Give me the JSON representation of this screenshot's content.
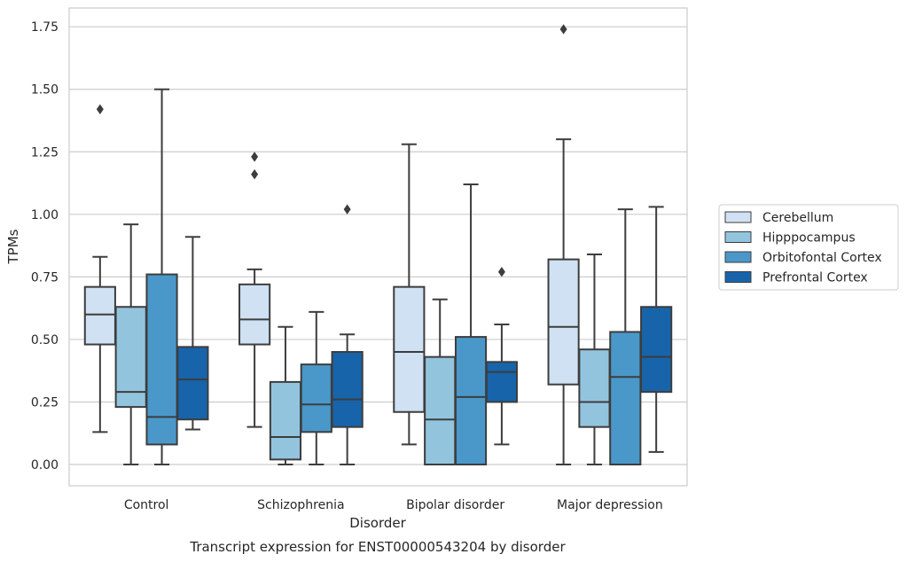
{
  "chart_data": {
    "type": "box",
    "title": "Transcript expression for ENST00000543204 by disorder",
    "xlabel": "Disorder",
    "ylabel": "TPMs",
    "ylim": [
      -0.085,
      1.825
    ],
    "yticks": [
      "0.00",
      "0.25",
      "0.50",
      "0.75",
      "1.00",
      "1.25",
      "1.50",
      "1.75"
    ],
    "grid": "horizontal",
    "legend_position": "right",
    "categories": [
      "Control",
      "Schizophrenia",
      "Bipolar disorder",
      "Major depression"
    ],
    "series": [
      {
        "name": "Cerebellum",
        "color": "#cfe1f2",
        "boxes": [
          {
            "whisker_low": 0.13,
            "q1": 0.48,
            "median": 0.6,
            "q3": 0.71,
            "whisker_high": 0.83,
            "outliers": [
              1.42
            ]
          },
          {
            "whisker_low": 0.15,
            "q1": 0.48,
            "median": 0.58,
            "q3": 0.72,
            "whisker_high": 0.78,
            "outliers": [
              1.16,
              1.23
            ]
          },
          {
            "whisker_low": 0.08,
            "q1": 0.21,
            "median": 0.45,
            "q3": 0.71,
            "whisker_high": 1.28,
            "outliers": []
          },
          {
            "whisker_low": 0.0,
            "q1": 0.32,
            "median": 0.55,
            "q3": 0.82,
            "whisker_high": 1.3,
            "outliers": [
              1.74
            ]
          }
        ]
      },
      {
        "name": "Hipppocampus",
        "color": "#93c4de",
        "boxes": [
          {
            "whisker_low": 0.0,
            "q1": 0.23,
            "median": 0.29,
            "q3": 0.63,
            "whisker_high": 0.96,
            "outliers": []
          },
          {
            "whisker_low": 0.0,
            "q1": 0.02,
            "median": 0.11,
            "q3": 0.33,
            "whisker_high": 0.55,
            "outliers": []
          },
          {
            "whisker_low": 0.0,
            "q1": 0.0,
            "median": 0.18,
            "q3": 0.43,
            "whisker_high": 0.66,
            "outliers": []
          },
          {
            "whisker_low": 0.0,
            "q1": 0.15,
            "median": 0.25,
            "q3": 0.46,
            "whisker_high": 0.84,
            "outliers": []
          }
        ]
      },
      {
        "name": "Orbitofontal Cortex",
        "color": "#4a98c9",
        "boxes": [
          {
            "whisker_low": 0.0,
            "q1": 0.08,
            "median": 0.19,
            "q3": 0.76,
            "whisker_high": 1.5,
            "outliers": []
          },
          {
            "whisker_low": 0.0,
            "q1": 0.13,
            "median": 0.24,
            "q3": 0.4,
            "whisker_high": 0.61,
            "outliers": []
          },
          {
            "whisker_low": 0.0,
            "q1": 0.0,
            "median": 0.27,
            "q3": 0.51,
            "whisker_high": 1.12,
            "outliers": []
          },
          {
            "whisker_low": 0.0,
            "q1": 0.0,
            "median": 0.35,
            "q3": 0.53,
            "whisker_high": 1.02,
            "outliers": []
          }
        ]
      },
      {
        "name": "Prefrontal Cortex",
        "color": "#1764ab",
        "boxes": [
          {
            "whisker_low": 0.14,
            "q1": 0.18,
            "median": 0.34,
            "q3": 0.47,
            "whisker_high": 0.91,
            "outliers": []
          },
          {
            "whisker_low": 0.0,
            "q1": 0.15,
            "median": 0.26,
            "q3": 0.45,
            "whisker_high": 0.52,
            "outliers": [
              1.02
            ]
          },
          {
            "whisker_low": 0.08,
            "q1": 0.25,
            "median": 0.37,
            "q3": 0.41,
            "whisker_high": 0.56,
            "outliers": [
              0.77
            ]
          },
          {
            "whisker_low": 0.05,
            "q1": 0.29,
            "median": 0.43,
            "q3": 0.63,
            "whisker_high": 1.03,
            "outliers": []
          }
        ]
      }
    ]
  }
}
